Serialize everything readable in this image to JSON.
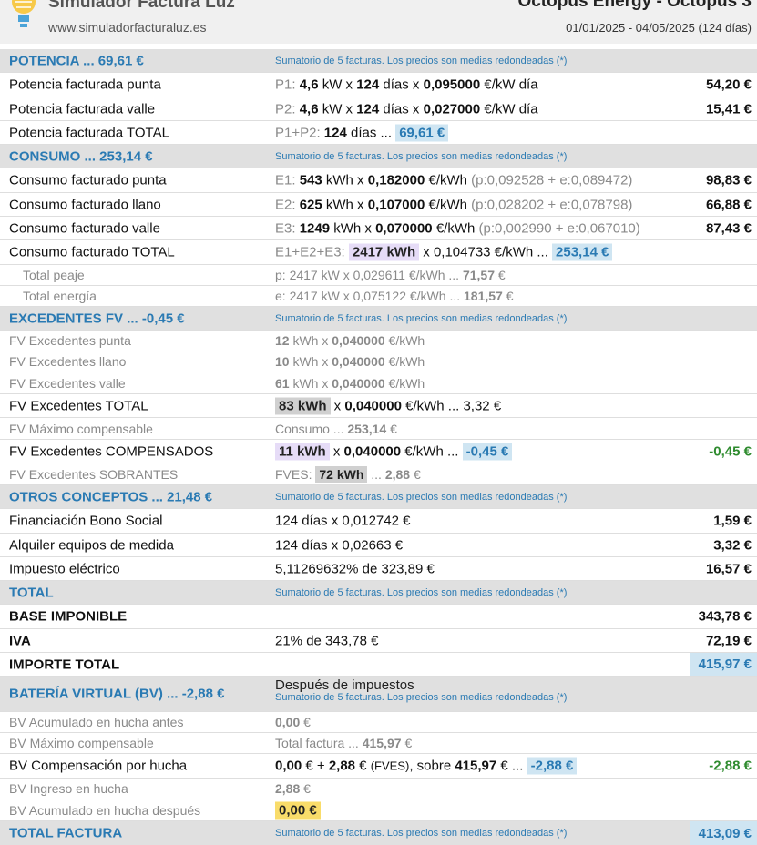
{
  "header": {
    "brand": "Simulador Factura Luz",
    "site": "www.simuladorfacturaluz.es",
    "provider": "Octopus Energy - Octopus 3",
    "dates": "01/01/2025 - 04/05/2025 (124 días)"
  },
  "note": "Sumatorio de 5 facturas. Los precios son medias redondeadas (*)",
  "potencia": {
    "title": "POTENCIA ... 69,61 €",
    "punta": {
      "label": "Potencia facturada punta",
      "code": "P1:",
      "kw": "4,6",
      "days": "124",
      "price": "0,095000",
      "unit": "€/kW día",
      "amount": "54,20 €"
    },
    "valle": {
      "label": "Potencia facturada valle",
      "code": "P2:",
      "kw": "4,6",
      "days": "124",
      "price": "0,027000",
      "unit": "€/kW día",
      "amount": "15,41 €"
    },
    "total": {
      "label": "Potencia facturada TOTAL",
      "code": "P1+P2:",
      "days": "124",
      "chip": "69,61 €"
    }
  },
  "consumo": {
    "title": "CONSUMO ... 253,14 €",
    "punta": {
      "label": "Consumo facturado punta",
      "code": "E1:",
      "kwh": "543",
      "price": "0,182000",
      "detail": "(p:0,092528 + e:0,089472)",
      "amount": "98,83 €"
    },
    "llano": {
      "label": "Consumo facturado llano",
      "code": "E2:",
      "kwh": "625",
      "price": "0,107000",
      "detail": "(p:0,028202 + e:0,078798)",
      "amount": "66,88 €"
    },
    "valle": {
      "label": "Consumo facturado valle",
      "code": "E3:",
      "kwh": "1249",
      "price": "0,070000",
      "detail": "(p:0,002990 + e:0,067010)",
      "amount": "87,43 €"
    },
    "total": {
      "label": "Consumo facturado TOTAL",
      "code": "E1+E2+E3:",
      "kwh_chip": "2417 kWh",
      "price": "x 0,104733 €/kWh ...",
      "chip": "253,14 €"
    },
    "peaje": {
      "label": "Total peaje",
      "prefix": "p: 2417 kW x 0,029611 €/kWh ...",
      "value": "71,57",
      "suffix": "€"
    },
    "energia": {
      "label": "Total energía",
      "prefix": "e: 2417 kW x 0,075122 €/kWh ...",
      "value": "181,57",
      "suffix": "€"
    }
  },
  "excedentes": {
    "title": "EXCEDENTES FV ... -0,45 €",
    "punta": {
      "label": "FV Excedentes punta",
      "kwh": "12",
      "price": "0,040000"
    },
    "llano": {
      "label": "FV Excedentes llano",
      "kwh": "10",
      "price": "0,040000"
    },
    "valle": {
      "label": "FV Excedentes valle",
      "kwh": "61",
      "price": "0,040000"
    },
    "total": {
      "label": "FV Excedentes TOTAL",
      "chip": "83 kWh",
      "price": "0,040000",
      "tail": "€/kWh ... 3,32 €"
    },
    "maximo": {
      "label": "FV Máximo compensable",
      "prefix": "Consumo ...",
      "value": "253,14",
      "suffix": "€"
    },
    "compensados": {
      "label": "FV Excedentes COMPENSADOS",
      "chip": "11 kWh",
      "price": "0,040000",
      "chip2": "-0,45 €",
      "amount": "-0,45 €"
    },
    "sobrantes": {
      "label": "FV Excedentes SOBRANTES",
      "prefix": "FVES:",
      "chip": "72 kWh",
      "mid": "...",
      "value": "2,88",
      "suffix": "€"
    }
  },
  "otros": {
    "title": "OTROS CONCEPTOS ... 21,48 €",
    "bono": {
      "label": "Financiación Bono Social",
      "detail": "124 días x 0,012742 €",
      "amount": "1,59 €"
    },
    "alquiler": {
      "label": "Alquiler equipos de medida",
      "detail": "124 días x 0,02663 €",
      "amount": "3,32 €"
    },
    "impuesto": {
      "label": "Impuesto eléctrico",
      "detail": "5,11269632% de 323,89 €",
      "amount": "16,57 €"
    }
  },
  "total": {
    "title": "TOTAL",
    "base": {
      "label": "BASE IMPONIBLE",
      "amount": "343,78 €"
    },
    "iva": {
      "label": "IVA",
      "detail": "21% de 343,78 €",
      "amount": "72,19 €"
    },
    "importe": {
      "label": "IMPORTE TOTAL",
      "amount": "415,97 €"
    }
  },
  "bateria": {
    "title": "BATERÍA VIRTUAL (BV) ... -2,88 €",
    "subtitle": "Después de impuestos",
    "antes": {
      "label": "BV Acumulado en hucha antes",
      "value": "0,00",
      "suffix": "€"
    },
    "maximo": {
      "label": "BV Máximo compensable",
      "prefix": "Total factura ...",
      "value": "415,97",
      "suffix": "€"
    },
    "compensacion": {
      "label": "BV Compensación por hucha",
      "v1": "0,00",
      "v2": "2,88",
      "fves": "(FVES)",
      "v3": "415,97",
      "chip": "-2,88 €",
      "amount": "-2,88 €"
    },
    "ingreso": {
      "label": "BV Ingreso en hucha",
      "value": "2,88",
      "suffix": "€"
    },
    "despues": {
      "label": "BV Acumulado en hucha después",
      "chip": "0,00 €"
    }
  },
  "total_factura": {
    "title": "TOTAL FACTURA",
    "amount": "413,09 €"
  }
}
